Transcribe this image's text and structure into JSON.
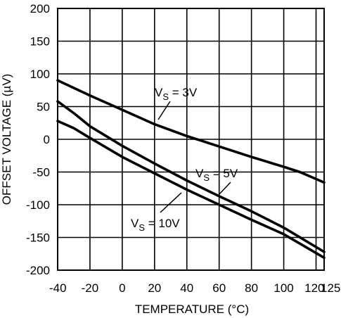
{
  "chart_data": {
    "type": "line",
    "title": "",
    "xlabel": "TEMPERATURE (°C)",
    "ylabel": "OFFSET VOLTAGE (µV)",
    "xlim": [
      -40,
      125
    ],
    "ylim": [
      -200,
      200
    ],
    "x_ticks": [
      -40,
      -20,
      0,
      20,
      40,
      60,
      80,
      100,
      120,
      125
    ],
    "x_tick_labels": [
      "-40",
      "-20",
      "0",
      "20",
      "40",
      "60",
      "80",
      "100",
      "120",
      "125"
    ],
    "y_ticks": [
      200,
      150,
      100,
      50,
      0,
      -50,
      -100,
      -150,
      -200
    ],
    "y_tick_labels": [
      "200",
      "150",
      "100",
      "50",
      "0",
      "-50",
      "-100",
      "-150",
      "-200"
    ],
    "grid": true,
    "legend": "none",
    "series": [
      {
        "name": "VS = 3V",
        "label_main": "V",
        "label_sub": "S",
        "label_rest": " = 3V",
        "x": [
          -40,
          -20,
          0,
          20,
          40,
          60,
          80,
          100,
          110,
          125
        ],
        "y": [
          90,
          67,
          45,
          23,
          5,
          -11,
          -27,
          -42,
          -50,
          -66
        ]
      },
      {
        "name": "VS = 5V",
        "label_main": "V",
        "label_sub": "S",
        "label_rest": " = 5V",
        "x": [
          -40,
          -30,
          -20,
          0,
          20,
          40,
          60,
          80,
          100,
          125
        ],
        "y": [
          58,
          40,
          20,
          -10,
          -37,
          -63,
          -87,
          -110,
          -135,
          -172
        ]
      },
      {
        "name": "VS = 10V",
        "label_main": "V",
        "label_sub": "S",
        "label_rest": " = 10V",
        "x": [
          -40,
          -30,
          -20,
          0,
          20,
          40,
          60,
          80,
          100,
          125
        ],
        "y": [
          28,
          17,
          2,
          -27,
          -52,
          -77,
          -100,
          -123,
          -145,
          -181
        ]
      }
    ]
  }
}
